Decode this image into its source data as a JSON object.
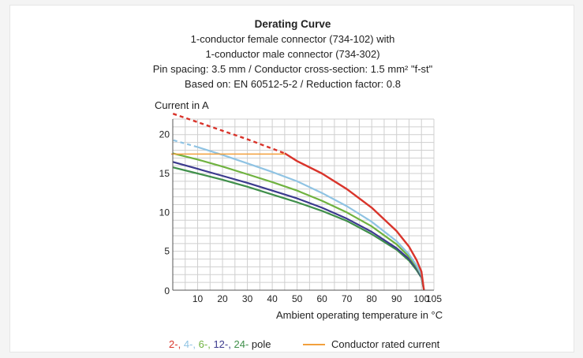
{
  "chart_data": {
    "type": "line",
    "title": "Derating Curve",
    "subtitle_lines": [
      "1-conductor female connector (734-102) with",
      "1-conductor male connector (734-302)",
      "Pin spacing: 3.5 mm / Conductor cross-section: 1.5 mm² \"f-st\"",
      "Based on: EN 60512-5-2 / Reduction factor: 0.8"
    ],
    "ylabel": "Current in A",
    "xlabel": "Ambient operating temperature in °C",
    "xlim": [
      0,
      105
    ],
    "ylim": [
      0,
      22
    ],
    "x_ticks": [
      10,
      20,
      30,
      40,
      50,
      60,
      70,
      80,
      90,
      100,
      105
    ],
    "y_ticks": [
      0,
      5,
      10,
      15,
      20
    ],
    "grid": true,
    "series": [
      {
        "name": "2-",
        "color": "#d9342b",
        "dashed_to_x": 45,
        "x": [
          -8,
          0,
          10,
          20,
          30,
          40,
          45,
          50,
          60,
          70,
          80,
          90,
          95,
          98,
          100,
          101
        ],
        "y": [
          23.6,
          22.7,
          21.6,
          20.5,
          19.4,
          18.2,
          17.6,
          16.6,
          15.0,
          13.0,
          10.6,
          7.6,
          5.6,
          3.9,
          2.4,
          0
        ]
      },
      {
        "name": "4-",
        "color": "#8fc3e3",
        "dashed_to_x": 10,
        "x": [
          -8,
          0,
          10,
          20,
          30,
          40,
          50,
          60,
          70,
          80,
          90,
          95,
          98,
          100,
          101
        ],
        "y": [
          20.0,
          19.3,
          18.4,
          17.4,
          16.3,
          15.2,
          14.0,
          12.5,
          10.8,
          8.8,
          6.3,
          4.6,
          3.2,
          2.0,
          0
        ]
      },
      {
        "name": "6-",
        "color": "#6fb23f",
        "dashed_to_x": 0,
        "x": [
          -8,
          0,
          10,
          20,
          30,
          40,
          50,
          60,
          70,
          80,
          90,
          95,
          98,
          100,
          101
        ],
        "y": [
          18.3,
          17.6,
          16.8,
          15.9,
          14.9,
          13.9,
          12.8,
          11.5,
          10.0,
          8.2,
          5.9,
          4.3,
          3.0,
          1.9,
          0
        ]
      },
      {
        "name": "12-",
        "color": "#3c3a8e",
        "dashed_to_x": 0,
        "x": [
          -8,
          0,
          10,
          20,
          30,
          40,
          50,
          60,
          70,
          80,
          90,
          95,
          98,
          100,
          101
        ],
        "y": [
          17.1,
          16.5,
          15.6,
          14.7,
          13.8,
          12.8,
          11.8,
          10.6,
          9.2,
          7.5,
          5.4,
          4.0,
          2.8,
          1.7,
          0
        ]
      },
      {
        "name": "24-",
        "color": "#3f8f4a",
        "dashed_to_x": 0,
        "x": [
          -8,
          0,
          10,
          20,
          30,
          40,
          50,
          60,
          70,
          80,
          90,
          95,
          98,
          100,
          101
        ],
        "y": [
          16.4,
          15.8,
          15.0,
          14.2,
          13.3,
          12.3,
          11.3,
          10.2,
          8.9,
          7.2,
          5.2,
          3.8,
          2.6,
          1.6,
          0
        ]
      }
    ],
    "rated_current": {
      "name": "Conductor rated current",
      "color": "#f2a03d",
      "x": [
        -8,
        45
      ],
      "y": [
        17.5,
        17.5
      ]
    },
    "legend": {
      "poles": [
        {
          "text": "2-",
          "color": "#d9342b"
        },
        {
          "text": "4-",
          "color": "#8fc3e3"
        },
        {
          "text": "6-",
          "color": "#6fb23f"
        },
        {
          "text": "12-",
          "color": "#3c3a8e"
        },
        {
          "text": "24-",
          "color": "#3f8f4a"
        }
      ],
      "pole_suffix": "pole",
      "rated_label": "Conductor rated current",
      "placement": "bottom"
    }
  }
}
